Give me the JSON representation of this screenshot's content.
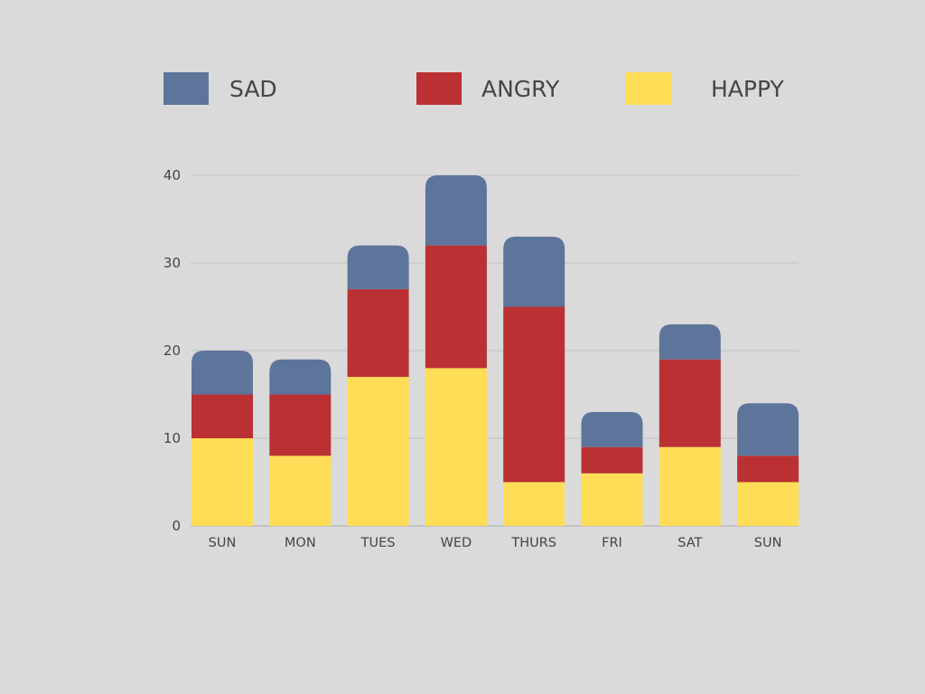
{
  "chart_data": {
    "type": "bar",
    "stacked": true,
    "title": "",
    "xlabel": "",
    "ylabel": "",
    "ylim": [
      0,
      40
    ],
    "yticks": [
      0,
      10,
      20,
      30,
      40
    ],
    "grid": true,
    "legend_position": "top",
    "categories": [
      "SUN",
      "MON",
      "TUES",
      "WED",
      "THURS",
      "FRI",
      "SAT",
      "SUN"
    ],
    "series": [
      {
        "name": "HAPPY",
        "color": "#ffdd57",
        "values": [
          10,
          8,
          17,
          18,
          5,
          6,
          9,
          5
        ]
      },
      {
        "name": "ANGRY",
        "color": "#bb3033",
        "values": [
          5,
          7,
          10,
          14,
          20,
          3,
          10,
          3
        ]
      },
      {
        "name": "SAD",
        "color": "#5e759b",
        "values": [
          5,
          4,
          5,
          8,
          8,
          4,
          4,
          6
        ]
      }
    ],
    "legend_order": [
      "SAD",
      "ANGRY",
      "HAPPY"
    ]
  }
}
